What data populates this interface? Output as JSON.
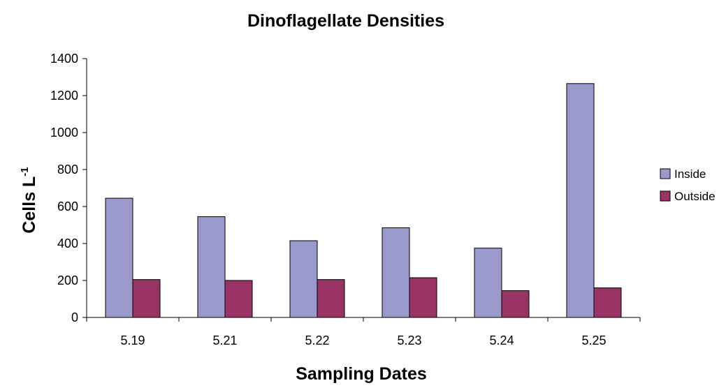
{
  "chart_data": {
    "type": "bar",
    "title": "Dinoflagellate Densities",
    "xlabel": "Sampling Dates",
    "ylabel": "Cells L",
    "ylabel_superscript": "-1",
    "categories": [
      "5.19",
      "5.21",
      "5.22",
      "5.23",
      "5.24",
      "5.25"
    ],
    "series": [
      {
        "name": "Inside",
        "values": [
          645,
          545,
          415,
          485,
          375,
          1265
        ],
        "color": "#9999cc"
      },
      {
        "name": "Outside",
        "values": [
          205,
          200,
          205,
          215,
          145,
          160
        ],
        "color": "#993366"
      }
    ],
    "ylim": [
      0,
      1400
    ],
    "yticks": [
      0,
      200,
      400,
      600,
      800,
      1000,
      1200,
      1400
    ],
    "grid": false,
    "legend_position": "right"
  }
}
